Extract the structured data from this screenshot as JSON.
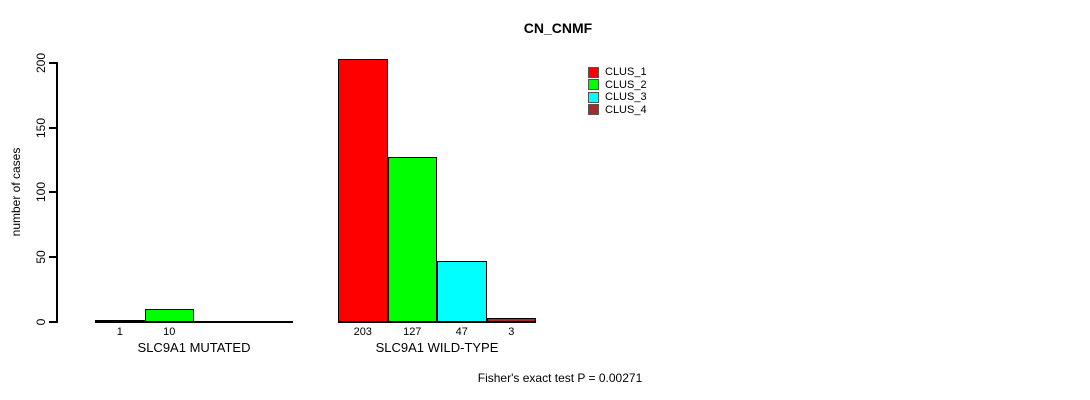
{
  "chart_data": {
    "type": "bar",
    "title": "CN_CNMF",
    "ylabel": "number of cases",
    "xlabel": "",
    "ylim": [
      0,
      200
    ],
    "yticks": [
      0,
      50,
      100,
      150,
      200
    ],
    "grid": false,
    "legend_position": "top-right-inside",
    "categories": [
      "SLC9A1 MUTATED",
      "SLC9A1 WILD-TYPE"
    ],
    "series": [
      {
        "name": "CLUS_1",
        "color": "#ff0000",
        "values": [
          1,
          203
        ]
      },
      {
        "name": "CLUS_2",
        "color": "#00ff00",
        "values": [
          10,
          127
        ]
      },
      {
        "name": "CLUS_3",
        "color": "#00ffff",
        "values": [
          null,
          47
        ]
      },
      {
        "name": "CLUS_4",
        "color": "#a52a2a",
        "values": [
          null,
          3
        ]
      }
    ],
    "note": "Fisher's exact test P = 0.00271"
  }
}
